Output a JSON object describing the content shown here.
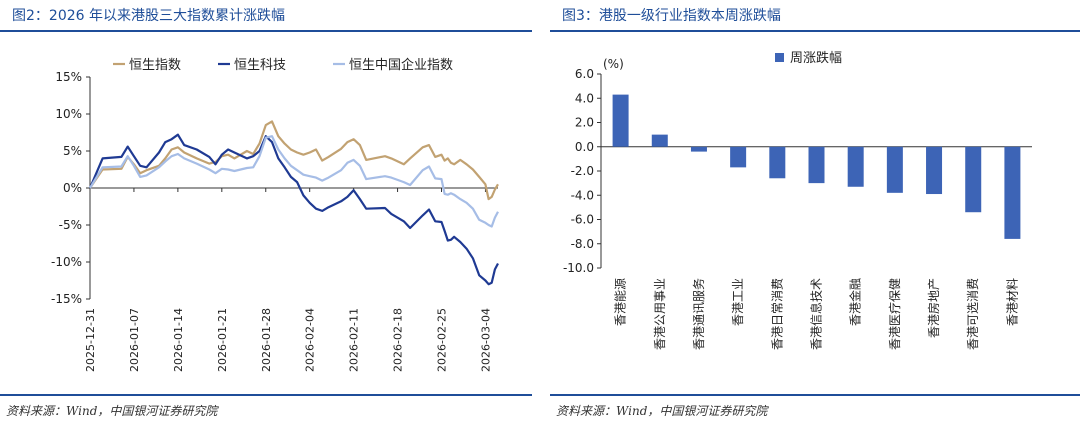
{
  "left": {
    "title": "图2：2026 年以来港股三大指数累计涨跌幅",
    "source": "资料来源：Wind，中国银河证券研究院"
  },
  "right": {
    "title": "图3：港股一级行业指数本周涨跌幅",
    "source": "资料来源：Wind，中国银河证券研究院"
  },
  "chart_data": [
    {
      "type": "line",
      "title": "2026 年以来港股三大指数累计涨跌幅",
      "y_ticks": [
        "15%",
        "10%",
        "5%",
        "0%",
        "-5%",
        "-10%",
        "-15%"
      ],
      "y_tick_values": [
        15,
        10,
        5,
        0,
        -5,
        -10,
        -15
      ],
      "ylim": [
        -15,
        15
      ],
      "x_ticks": [
        "2025-12-31",
        "2026-01-07",
        "2026-01-14",
        "2026-01-21",
        "2026-01-28",
        "2026-02-04",
        "2026-02-11",
        "2026-02-18",
        "2026-02-25",
        "2026-03-04"
      ],
      "x_tick_days": [
        0,
        7,
        14,
        21,
        28,
        35,
        42,
        49,
        56,
        63
      ],
      "x_range_days": [
        0,
        65
      ],
      "series": [
        {
          "name": "恒生指数",
          "color": "#c2a272",
          "points": [
            [
              0,
              0
            ],
            [
              2,
              2.5
            ],
            [
              5,
              2.6
            ],
            [
              6,
              4.2
            ],
            [
              7,
              3.2
            ],
            [
              8,
              2.0
            ],
            [
              9,
              2.4
            ],
            [
              11,
              3.0
            ],
            [
              12,
              4.0
            ],
            [
              13,
              5.2
            ],
            [
              14,
              5.5
            ],
            [
              15,
              4.8
            ],
            [
              17,
              4.0
            ],
            [
              19,
              3.3
            ],
            [
              20,
              3.5
            ],
            [
              21,
              4.3
            ],
            [
              22,
              4.5
            ],
            [
              23,
              4.0
            ],
            [
              25,
              5.0
            ],
            [
              26,
              4.6
            ],
            [
              27,
              6.0
            ],
            [
              28,
              8.5
            ],
            [
              29,
              9.0
            ],
            [
              30,
              7.0
            ],
            [
              31,
              6.0
            ],
            [
              32,
              5.2
            ],
            [
              33,
              4.8
            ],
            [
              34,
              4.5
            ],
            [
              35,
              4.8
            ],
            [
              36,
              5.2
            ],
            [
              37,
              3.7
            ],
            [
              38,
              4.2
            ],
            [
              40,
              5.3
            ],
            [
              41,
              6.2
            ],
            [
              42,
              6.6
            ],
            [
              43,
              5.8
            ],
            [
              44,
              3.8
            ],
            [
              47,
              4.3
            ],
            [
              48,
              4.0
            ],
            [
              50,
              3.2
            ],
            [
              51,
              4.0
            ],
            [
              53,
              5.5
            ],
            [
              54,
              5.8
            ],
            [
              55,
              4.2
            ],
            [
              56,
              4.5
            ],
            [
              56.5,
              3.7
            ],
            [
              57,
              4.0
            ],
            [
              57.5,
              3.4
            ],
            [
              58,
              3.2
            ],
            [
              59,
              3.8
            ],
            [
              60,
              3.2
            ],
            [
              61,
              2.5
            ],
            [
              62,
              1.5
            ],
            [
              63,
              0.5
            ],
            [
              63.5,
              -1.5
            ],
            [
              64,
              -1.2
            ],
            [
              64.5,
              -0.2
            ],
            [
              65,
              0.5
            ]
          ]
        },
        {
          "name": "恒生科技",
          "color": "#1f3a93",
          "points": [
            [
              0,
              0
            ],
            [
              2,
              4.0
            ],
            [
              5,
              4.2
            ],
            [
              6,
              5.6
            ],
            [
              7,
              4.3
            ],
            [
              8,
              3.0
            ],
            [
              9,
              2.8
            ],
            [
              11,
              4.8
            ],
            [
              12,
              6.2
            ],
            [
              13,
              6.6
            ],
            [
              14,
              7.2
            ],
            [
              15,
              5.8
            ],
            [
              17,
              5.2
            ],
            [
              19,
              4.2
            ],
            [
              20,
              3.2
            ],
            [
              21,
              4.5
            ],
            [
              22,
              5.2
            ],
            [
              23,
              4.8
            ],
            [
              25,
              4.0
            ],
            [
              26,
              4.3
            ],
            [
              27,
              5.0
            ],
            [
              28,
              7.0
            ],
            [
              29,
              6.2
            ],
            [
              30,
              4.0
            ],
            [
              31,
              2.8
            ],
            [
              32,
              1.5
            ],
            [
              33,
              0.8
            ],
            [
              34,
              -1.0
            ],
            [
              35,
              -2.0
            ],
            [
              36,
              -2.8
            ],
            [
              37,
              -3.1
            ],
            [
              38,
              -2.6
            ],
            [
              40,
              -1.8
            ],
            [
              41,
              -1.2
            ],
            [
              42,
              -0.3
            ],
            [
              43,
              -1.5
            ],
            [
              44,
              -2.8
            ],
            [
              47,
              -2.7
            ],
            [
              48,
              -3.5
            ],
            [
              50,
              -4.5
            ],
            [
              51,
              -5.4
            ],
            [
              53,
              -3.7
            ],
            [
              54,
              -2.9
            ],
            [
              55,
              -4.5
            ],
            [
              56,
              -4.6
            ],
            [
              56.5,
              -5.8
            ],
            [
              57,
              -7.1
            ],
            [
              57.5,
              -7.0
            ],
            [
              58,
              -6.6
            ],
            [
              59,
              -7.3
            ],
            [
              60,
              -8.2
            ],
            [
              61,
              -9.5
            ],
            [
              62,
              -11.8
            ],
            [
              63,
              -12.5
            ],
            [
              63.5,
              -13.0
            ],
            [
              64,
              -12.8
            ],
            [
              64.5,
              -11.0
            ],
            [
              65,
              -10.2
            ]
          ]
        },
        {
          "name": "恒生中国企业指数",
          "color": "#a6bde6",
          "points": [
            [
              0,
              0
            ],
            [
              2,
              2.8
            ],
            [
              5,
              2.9
            ],
            [
              6,
              4.3
            ],
            [
              7,
              3.0
            ],
            [
              8,
              1.5
            ],
            [
              9,
              1.7
            ],
            [
              11,
              2.8
            ],
            [
              12,
              3.6
            ],
            [
              13,
              4.3
            ],
            [
              14,
              4.6
            ],
            [
              15,
              4.0
            ],
            [
              17,
              3.3
            ],
            [
              19,
              2.5
            ],
            [
              20,
              2.0
            ],
            [
              21,
              2.6
            ],
            [
              22,
              2.5
            ],
            [
              23,
              2.3
            ],
            [
              25,
              2.7
            ],
            [
              26,
              2.8
            ],
            [
              27,
              4.3
            ],
            [
              28,
              6.8
            ],
            [
              29,
              7.0
            ],
            [
              30,
              5.2
            ],
            [
              31,
              4.0
            ],
            [
              32,
              3.0
            ],
            [
              33,
              2.4
            ],
            [
              34,
              1.8
            ],
            [
              35,
              1.6
            ],
            [
              36,
              1.4
            ],
            [
              37,
              1.0
            ],
            [
              38,
              1.4
            ],
            [
              40,
              2.4
            ],
            [
              41,
              3.4
            ],
            [
              42,
              3.8
            ],
            [
              43,
              3.0
            ],
            [
              44,
              1.2
            ],
            [
              47,
              1.6
            ],
            [
              48,
              1.4
            ],
            [
              50,
              0.8
            ],
            [
              51,
              0.4
            ],
            [
              53,
              2.4
            ],
            [
              54,
              2.9
            ],
            [
              55,
              1.3
            ],
            [
              56,
              1.2
            ],
            [
              56.5,
              -0.8
            ],
            [
              57,
              -0.9
            ],
            [
              57.5,
              -0.7
            ],
            [
              58,
              -0.9
            ],
            [
              59,
              -1.5
            ],
            [
              60,
              -2.0
            ],
            [
              61,
              -2.8
            ],
            [
              62,
              -4.3
            ],
            [
              63,
              -4.7
            ],
            [
              63.5,
              -5.0
            ],
            [
              64,
              -5.2
            ],
            [
              64.5,
              -4.0
            ],
            [
              65,
              -3.2
            ]
          ]
        }
      ]
    },
    {
      "type": "bar",
      "title": "港股一级行业指数本周涨跌幅",
      "ylabel": "(%)",
      "ylim": [
        -10,
        6
      ],
      "y_ticks": [
        "6.0",
        "4.0",
        "2.0",
        "0.0",
        "-2.0",
        "-4.0",
        "-6.0",
        "-8.0",
        "-10.0"
      ],
      "y_tick_values": [
        6,
        4,
        2,
        0,
        -2,
        -4,
        -6,
        -8,
        -10
      ],
      "color": "#3d64b6",
      "series": [
        {
          "name": "周涨跌幅",
          "values": [
            4.3,
            1.0,
            -0.4,
            -1.7,
            -2.6,
            -3.0,
            -3.3,
            -3.8,
            -3.9,
            -5.4,
            -7.6
          ]
        }
      ],
      "categories": [
        "香港能源",
        "香港公用事业",
        "香港通讯服务",
        "香港工业",
        "香港日常消费",
        "香港信息技术",
        "香港金融",
        "香港医疗保健",
        "香港房地产",
        "香港可选消费",
        "香港材料"
      ]
    }
  ]
}
